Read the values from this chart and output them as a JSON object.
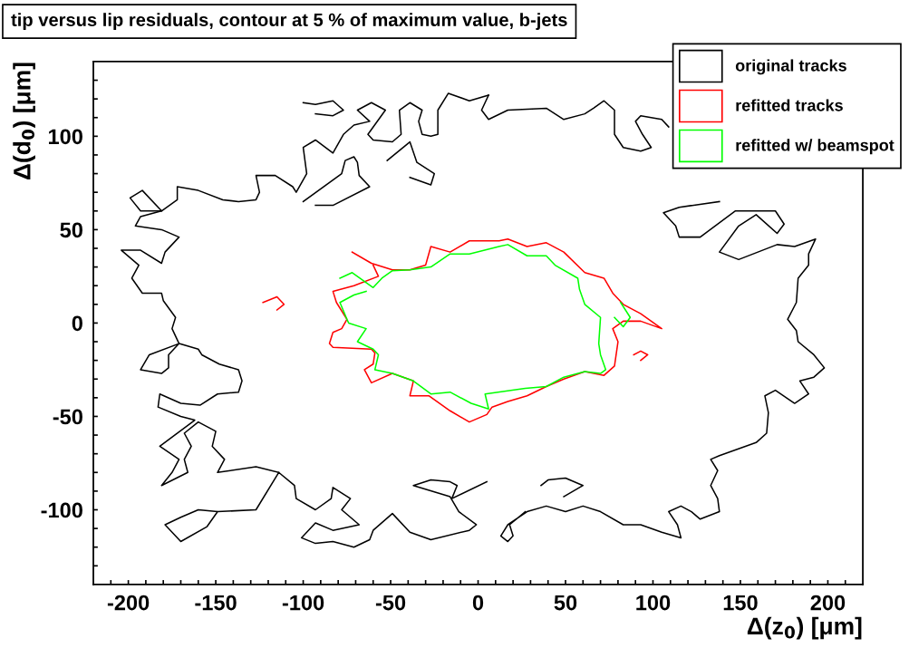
{
  "chart_data": {
    "type": "line",
    "title": "tip versus lip residuals, contour at 5 % of maximum value, b-jets",
    "xlabel": "Δ(z$_{0}$) [μm]",
    "ylabel": "Δ(d$_{0}$) [μm]",
    "xlim": [
      -220,
      220
    ],
    "ylim": [
      -140,
      140
    ],
    "xticks": [
      {
        "value": -210,
        "label": null
      },
      -200,
      {
        "value": -190,
        "label": null
      },
      {
        "value": -180,
        "label": null
      },
      {
        "value": -170,
        "label": null
      },
      {
        "value": -160,
        "label": null
      },
      -150,
      {
        "value": -140,
        "label": null
      },
      {
        "value": -130,
        "label": null
      },
      {
        "value": -120,
        "label": null
      },
      {
        "value": -110,
        "label": null
      },
      -100,
      {
        "value": -90,
        "label": null
      },
      {
        "value": -80,
        "label": null
      },
      {
        "value": -70,
        "label": null
      },
      {
        "value": -60,
        "label": null
      },
      -50,
      {
        "value": -40,
        "label": null
      },
      {
        "value": -30,
        "label": null
      },
      {
        "value": -20,
        "label": null
      },
      {
        "value": -10,
        "label": null
      },
      0,
      {
        "value": 10,
        "label": null
      },
      {
        "value": 20,
        "label": null
      },
      {
        "value": 30,
        "label": null
      },
      {
        "value": 40,
        "label": null
      },
      50,
      {
        "value": 60,
        "label": null
      },
      {
        "value": 70,
        "label": null
      },
      {
        "value": 80,
        "label": null
      },
      {
        "value": 90,
        "label": null
      },
      100,
      {
        "value": 110,
        "label": null
      },
      {
        "value": 120,
        "label": null
      },
      {
        "value": 130,
        "label": null
      },
      {
        "value": 140,
        "label": null
      },
      150,
      {
        "value": 160,
        "label": null
      },
      {
        "value": 170,
        "label": null
      },
      {
        "value": 180,
        "label": null
      },
      {
        "value": 190,
        "label": null
      },
      200,
      {
        "value": 210,
        "label": null
      }
    ],
    "yticks": [
      {
        "value": -130,
        "label": null
      },
      {
        "value": -120,
        "label": null
      },
      {
        "value": -110,
        "label": null
      },
      -100,
      {
        "value": -90,
        "label": null
      },
      {
        "value": -80,
        "label": null
      },
      {
        "value": -70,
        "label": null
      },
      {
        "value": -60,
        "label": null
      },
      -50,
      {
        "value": -40,
        "label": null
      },
      {
        "value": -30,
        "label": null
      },
      {
        "value": -20,
        "label": null
      },
      {
        "value": -10,
        "label": null
      },
      0,
      {
        "value": 10,
        "label": null
      },
      {
        "value": 20,
        "label": null
      },
      {
        "value": 30,
        "label": null
      },
      {
        "value": 40,
        "label": null
      },
      50,
      {
        "value": 60,
        "label": null
      },
      {
        "value": 70,
        "label": null
      },
      {
        "value": 80,
        "label": null
      },
      {
        "value": 90,
        "label": null
      },
      100,
      {
        "value": 110,
        "label": null
      },
      {
        "value": 120,
        "label": null
      },
      {
        "value": 130,
        "label": null
      }
    ],
    "grid": false,
    "legend": "top right",
    "marker": "none",
    "line_style": "solid",
    "series": [
      {
        "name": "original tracks",
        "color": "#000000",
        "x": [
          6,
          -5,
          -17,
          -23,
          -23,
          -27,
          -32,
          -34,
          -32,
          -39,
          -45,
          -44,
          -49,
          -60,
          -63,
          -53,
          -61,
          -69,
          -62,
          -71,
          -77,
          -83,
          -93,
          -100,
          -98,
          -104,
          -106,
          -116,
          -127,
          -125,
          -127,
          -137,
          -146,
          -160,
          -172,
          -172,
          -181,
          -193,
          -199,
          -192,
          -181
        ],
        "values": [
          122,
          119,
          123,
          114,
          101,
          100,
          101,
          108,
          114,
          118,
          114,
          101,
          97,
          98,
          101,
          114,
          118,
          114,
          108,
          106,
          101,
          91,
          98,
          94,
          80,
          70,
          73,
          79,
          79,
          70,
          66,
          65,
          66,
          71,
          73,
          66,
          60,
          60,
          67,
          71,
          60
        ]
      },
      {
        "color": "#000000",
        "x": [
          6,
          2,
          6,
          17,
          39,
          49,
          61,
          66,
          72,
          78,
          78,
          83,
          93,
          99,
          94,
          90,
          93,
          105,
          109
        ],
        "values": [
          122,
          114,
          109,
          114,
          115,
          109,
          112,
          115,
          119,
          114,
          101,
          94,
          92,
          94,
          101,
          108,
          111,
          109,
          105
        ]
      },
      {
        "color": "#000000",
        "x": [
          138,
          115,
          106,
          113,
          115,
          127,
          147,
          170,
          175,
          171,
          159,
          149,
          138,
          149,
          171,
          181,
          193,
          189,
          189,
          183,
          182,
          177,
          182,
          183,
          192,
          198,
          192,
          184,
          189,
          181,
          170,
          164,
          166,
          165,
          159,
          138,
          133,
          137,
          133,
          137,
          138,
          127,
          122,
          116,
          109,
          114,
          116,
          105,
          93,
          83,
          70,
          60,
          50,
          39,
          28,
          17,
          13,
          17,
          20,
          18,
          27
        ],
        "values": [
          65,
          62,
          59,
          52,
          46,
          46,
          60,
          60,
          53,
          48,
          58,
          52,
          38,
          34,
          42,
          41,
          45,
          37,
          31,
          24,
          11,
          2,
          -4,
          -10,
          -17,
          -24,
          -29,
          -31,
          -38,
          -43,
          -36,
          -39,
          -48,
          -59,
          -64,
          -71,
          -73,
          -79,
          -87,
          -94,
          -101,
          -105,
          -101,
          -98,
          -101,
          -108,
          -115,
          -112,
          -108,
          -108,
          -101,
          -98,
          -101,
          -98,
          -101,
          -108,
          -114,
          -117,
          -114,
          -108,
          -101
        ]
      },
      {
        "color": "#000000",
        "x": [
          5,
          -15,
          -12,
          -16,
          -27,
          -37,
          -16,
          -11,
          -1,
          -5,
          -27,
          -39,
          -49,
          -60,
          -62,
          -71,
          -83,
          -93,
          -101,
          -93,
          -83,
          -68,
          -78,
          -73,
          -83,
          -84,
          -93,
          -104,
          -105,
          -114,
          -127,
          -149,
          -160,
          -170,
          -179,
          -170,
          -155,
          -149
        ],
        "values": [
          -85,
          -94,
          -87,
          -85,
          -84,
          -87,
          -93,
          -101,
          -108,
          -111,
          -116,
          -112,
          -102,
          -111,
          -116,
          -120,
          -117,
          -118,
          -115,
          -107,
          -111,
          -108,
          -100,
          -94,
          -88,
          -94,
          -100,
          -94,
          -87,
          -80,
          -100,
          -101,
          -100,
          -104,
          -108,
          -117,
          -109,
          -101
        ]
      },
      {
        "color": "#000000",
        "x": [
          -114,
          -127,
          -149,
          -145,
          -152,
          -150,
          -160,
          -168,
          -164,
          -168,
          -166,
          -181,
          -175,
          -171,
          -182,
          -162,
          -170,
          -183,
          -182,
          -170,
          -159,
          -149,
          -137,
          -135,
          -137,
          -148,
          -158,
          -160,
          -171,
          -177,
          -177,
          -181,
          -193,
          -188,
          -171,
          -175,
          -173,
          -180,
          -181,
          -192,
          -198,
          -194,
          -204,
          -193,
          -181,
          -179,
          -171,
          -181,
          -196,
          -193,
          -181
        ],
        "values": [
          -80,
          -77,
          -80,
          -73,
          -66,
          -58,
          -53,
          -59,
          -66,
          -73,
          -80,
          -87,
          -80,
          -73,
          -66,
          -52,
          -50,
          -45,
          -38,
          -43,
          -44,
          -38,
          -37,
          -31,
          -25,
          -22,
          -17,
          -14,
          -11,
          -17,
          -24,
          -27,
          -25,
          -17,
          -11,
          -3,
          3,
          12,
          16,
          16,
          24,
          31,
          39,
          39,
          32,
          38,
          46,
          50,
          52,
          57,
          60
        ]
      },
      {
        "color": "#000000",
        "x": [
          -100,
          -93,
          -83,
          -77,
          -83,
          -93
        ],
        "values": [
          118,
          117,
          119,
          114,
          111,
          112
        ]
      },
      {
        "color": "#000000",
        "x": [
          -52,
          -39,
          -35,
          -25,
          -27,
          -39
        ],
        "values": [
          87,
          97,
          86,
          80,
          74,
          78
        ]
      },
      {
        "color": "#000000",
        "x": [
          -100,
          -78,
          -76,
          -71,
          -69,
          -68,
          -62,
          -83,
          -93
        ],
        "values": [
          65,
          80,
          87,
          89,
          86,
          79,
          73,
          63,
          63
        ]
      },
      {
        "color": "#000000",
        "x": [
          36,
          40,
          50,
          60,
          49
        ],
        "values": [
          -87,
          -84,
          -83,
          -87,
          -93
        ]
      },
      {
        "name": "refitted tracks",
        "color": "#ff0000",
        "x": [
          -72,
          -61,
          -49,
          -39,
          -30,
          -27,
          -16,
          -5,
          12,
          17,
          28,
          39,
          49,
          61,
          72,
          77,
          83,
          93,
          105,
          93,
          83,
          77,
          80,
          78,
          72,
          61,
          49,
          39,
          28,
          17,
          8,
          5,
          -5,
          -16,
          -28,
          -39,
          -37,
          -49,
          -61,
          -65,
          -60,
          -59,
          -61,
          -83,
          -85,
          -83,
          -78,
          -75,
          -81,
          -83,
          -71,
          -57,
          -60
        ],
        "values": [
          38,
          32,
          28.5,
          28.5,
          31,
          41,
          38,
          44,
          44,
          45,
          41,
          43,
          38,
          27,
          24,
          16,
          10,
          5,
          -3,
          1,
          1,
          -3,
          -10,
          -23,
          -28,
          -26,
          -30,
          -34,
          -39,
          -42,
          -45,
          -49,
          -53,
          -47,
          -39,
          -39,
          -31,
          -27,
          -32,
          -25,
          -22,
          -16,
          -14,
          -13,
          -11,
          -5,
          -3,
          2,
          11,
          17,
          20,
          25,
          31
        ]
      },
      {
        "color": "#ff0000",
        "x": [
          -123,
          -115,
          -111,
          -115
        ],
        "values": [
          11,
          14,
          10,
          7
        ]
      },
      {
        "color": "#ff0000",
        "x": [
          89,
          93,
          97,
          93
        ],
        "values": [
          -17,
          -15,
          -17,
          -20
        ]
      },
      {
        "name": "refitted w/ beamspot",
        "color": "#00ff00",
        "x": [
          -79,
          -72,
          -60,
          -55,
          -49,
          -39,
          -27,
          -16,
          -5,
          12,
          17,
          28,
          39,
          44,
          57,
          58,
          61,
          70,
          69,
          70,
          73,
          70,
          61,
          49,
          39,
          27,
          4,
          6,
          -4,
          -16,
          -27,
          -37,
          -49,
          -59,
          -57,
          -60,
          -69,
          -64,
          -74,
          -75,
          -79,
          -71,
          -64
        ],
        "values": [
          24,
          27,
          19,
          24,
          28,
          28.5,
          30,
          37,
          37,
          41,
          42,
          36,
          36,
          31,
          24,
          18,
          10,
          3,
          -11,
          -17,
          -25,
          -27,
          -26,
          -29,
          -34,
          -35,
          -38,
          -46,
          -43,
          -37,
          -38,
          -31,
          -27,
          -25,
          -17,
          -14,
          -10,
          -3,
          0,
          2,
          11,
          15,
          17
        ]
      },
      {
        "color": "#00ff00",
        "x": [
          81.5,
          87,
          83,
          78
        ],
        "values": [
          11,
          3,
          -2,
          3
        ]
      }
    ]
  }
}
